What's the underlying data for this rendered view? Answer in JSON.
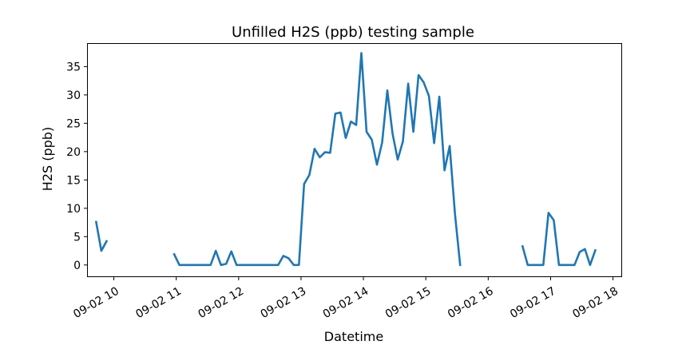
{
  "chart_data": {
    "type": "line",
    "title": "Unfilled H2S (ppb) testing sample",
    "xlabel": "Datetime",
    "ylabel": "H2S (ppb)",
    "x_tick_labels": [
      "09-02 10",
      "09-02 11",
      "09-02 12",
      "09-02 13",
      "09-02 14",
      "09-02 15",
      "09-02 16",
      "09-02 17",
      "09-02 18"
    ],
    "y_ticks": [
      0,
      5,
      10,
      15,
      20,
      25,
      30,
      35
    ],
    "xlim": [
      "09-02 09:35",
      "09-02 18:08"
    ],
    "ylim": [
      -2,
      39
    ],
    "grid": false,
    "line_color": "#1f77b4",
    "series": [
      {
        "segments": [
          [
            [
              "09-02 09:43",
              7.6
            ],
            [
              "09-02 09:48",
              2.5
            ],
            [
              "09-02 09:53",
              4.2
            ]
          ],
          [
            [
              "09-02 10:58",
              1.9
            ],
            [
              "09-02 11:03",
              0
            ],
            [
              "09-02 11:08",
              0
            ],
            [
              "09-02 11:13",
              0
            ],
            [
              "09-02 11:18",
              0
            ],
            [
              "09-02 11:23",
              0
            ],
            [
              "09-02 11:28",
              0
            ],
            [
              "09-02 11:33",
              0
            ],
            [
              "09-02 11:38",
              2.5
            ],
            [
              "09-02 11:43",
              0
            ],
            [
              "09-02 11:48",
              0.2
            ],
            [
              "09-02 11:53",
              2.4
            ],
            [
              "09-02 11:58",
              0
            ],
            [
              "09-02 12:03",
              0
            ],
            [
              "09-02 12:08",
              0
            ],
            [
              "09-02 12:13",
              0
            ],
            [
              "09-02 12:18",
              0
            ],
            [
              "09-02 12:23",
              0
            ],
            [
              "09-02 12:28",
              0
            ],
            [
              "09-02 12:33",
              0
            ],
            [
              "09-02 12:38",
              0
            ],
            [
              "09-02 12:43",
              1.6
            ],
            [
              "09-02 12:48",
              1.2
            ],
            [
              "09-02 12:53",
              0
            ],
            [
              "09-02 12:58",
              0
            ],
            [
              "09-02 13:03",
              14.3
            ],
            [
              "09-02 13:08",
              15.9
            ],
            [
              "09-02 13:13",
              20.5
            ],
            [
              "09-02 13:18",
              19
            ],
            [
              "09-02 13:23",
              19.9
            ],
            [
              "09-02 13:28",
              19.8
            ],
            [
              "09-02 13:33",
              26.7
            ],
            [
              "09-02 13:38",
              26.9
            ],
            [
              "09-02 13:43",
              22.4
            ],
            [
              "09-02 13:48",
              25.3
            ],
            [
              "09-02 13:53",
              24.7
            ],
            [
              "09-02 13:58",
              37.4
            ],
            [
              "09-02 14:03",
              23.5
            ],
            [
              "09-02 14:08",
              22.1
            ],
            [
              "09-02 14:13",
              17.7
            ],
            [
              "09-02 14:18",
              21.6
            ],
            [
              "09-02 14:23",
              30.8
            ],
            [
              "09-02 14:28",
              23.2
            ],
            [
              "09-02 14:33",
              18.6
            ],
            [
              "09-02 14:38",
              21.8
            ],
            [
              "09-02 14:43",
              32
            ],
            [
              "09-02 14:48",
              23.5
            ],
            [
              "09-02 14:53",
              33.5
            ],
            [
              "09-02 14:58",
              32.2
            ],
            [
              "09-02 15:03",
              29.8
            ],
            [
              "09-02 15:08",
              21.5
            ],
            [
              "09-02 15:13",
              29.7
            ],
            [
              "09-02 15:18",
              16.7
            ],
            [
              "09-02 15:23",
              21
            ],
            [
              "09-02 15:28",
              9
            ],
            [
              "09-02 15:33",
              0
            ]
          ],
          [
            [
              "09-02 16:33",
              3.3
            ],
            [
              "09-02 16:38",
              0
            ],
            [
              "09-02 16:43",
              0
            ],
            [
              "09-02 16:48",
              0
            ],
            [
              "09-02 16:53",
              0
            ],
            [
              "09-02 16:58",
              9.2
            ],
            [
              "09-02 17:03",
              7.9
            ],
            [
              "09-02 17:08",
              0
            ],
            [
              "09-02 17:13",
              0
            ],
            [
              "09-02 17:18",
              0
            ],
            [
              "09-02 17:23",
              0
            ],
            [
              "09-02 17:28",
              2.3
            ],
            [
              "09-02 17:33",
              2.8
            ],
            [
              "09-02 17:38",
              0
            ],
            [
              "09-02 17:43",
              2.6
            ]
          ]
        ]
      }
    ]
  }
}
